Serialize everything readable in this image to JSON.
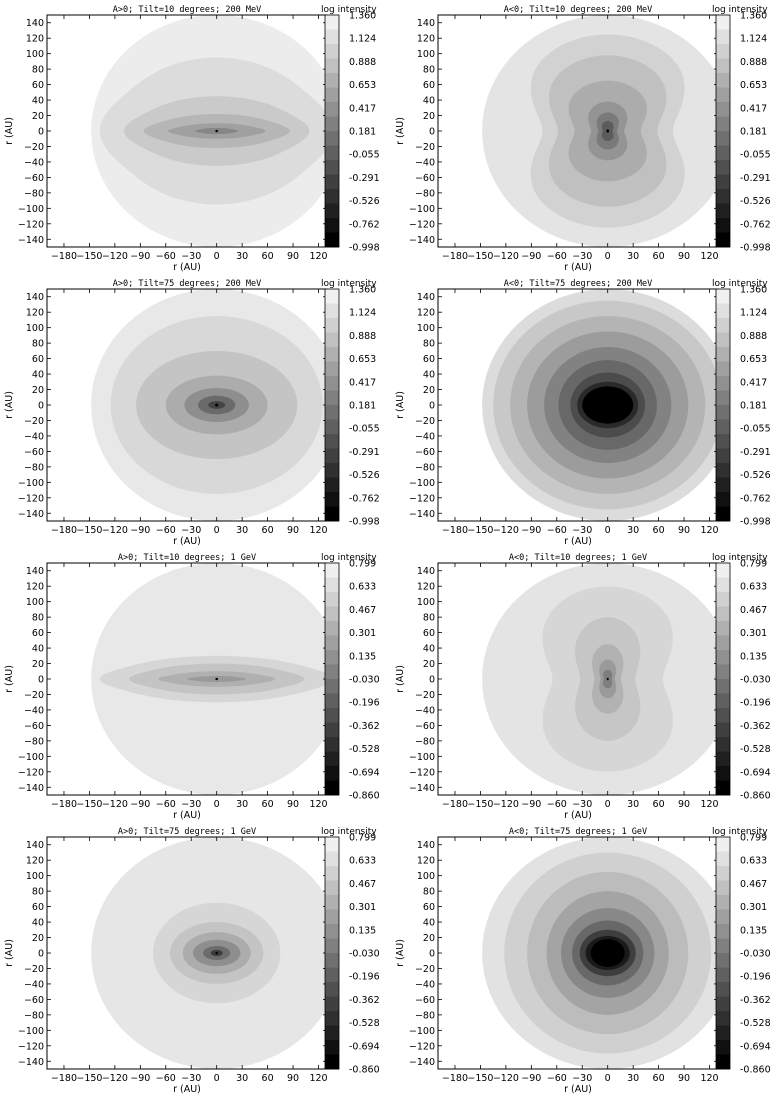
{
  "chart_data": [
    {
      "type": "heatmap",
      "title": "A>0; Tilt=10 degrees; 200 MeV",
      "xlabel": "r (AU)",
      "ylabel": "r (AU)",
      "xlim": [
        -200,
        130
      ],
      "ylim": [
        -150,
        150
      ],
      "x_ticks": [
        "-180",
        "-150",
        "-120",
        "-90",
        "-60",
        "-30",
        "0",
        "30",
        "60",
        "90",
        "120"
      ],
      "y_ticks": [
        "140",
        "120",
        "100",
        "80",
        "60",
        "40",
        "20",
        "0",
        "-20",
        "-40",
        "-60",
        "-80",
        "-100",
        "-120",
        "-140"
      ],
      "colorbar_title": "log intensity",
      "colorbar_ticks": [
        "1.360",
        "1.124",
        "0.888",
        "0.653",
        "0.417",
        "0.181",
        "-0.055",
        "-0.291",
        "-0.526",
        "-0.762",
        "-0.998"
      ],
      "pattern": "plane",
      "levels": [
        {
          "level": 1.36,
          "rx": 148,
          "ry": 150,
          "color": "#ececec"
        },
        {
          "level": 1.124,
          "rx": 120,
          "ry": 95,
          "color": "#dcdcdc"
        },
        {
          "level": 0.888,
          "rx": 95,
          "ry": 45,
          "color": "#cacaca"
        },
        {
          "level": 0.653,
          "rx": 75,
          "ry": 22,
          "color": "#b6b6b6"
        },
        {
          "level": 0.417,
          "rx": 50,
          "ry": 10,
          "color": "#a0a0a0"
        },
        {
          "level": 0.181,
          "rx": 22,
          "ry": 4,
          "color": "#868686"
        },
        {
          "level": -0.998,
          "rx": 1.5,
          "ry": 1.5,
          "color": "#000000"
        }
      ]
    },
    {
      "type": "heatmap",
      "title": "A<0; Tilt=10 degrees; 200 MeV",
      "xlabel": "r (AU)",
      "ylabel": "r (AU)",
      "xlim": [
        -200,
        130
      ],
      "ylim": [
        -150,
        150
      ],
      "x_ticks": [
        "-180",
        "-150",
        "-120",
        "-90",
        "-60",
        "-30",
        "0",
        "30",
        "60",
        "90",
        "120"
      ],
      "y_ticks": [
        "140",
        "120",
        "100",
        "80",
        "60",
        "40",
        "20",
        "0",
        "-20",
        "-40",
        "-60",
        "-80",
        "-100",
        "-120",
        "-140"
      ],
      "colorbar_title": "log intensity",
      "colorbar_ticks": [
        "1.360",
        "1.124",
        "0.888",
        "0.653",
        "0.417",
        "0.181",
        "-0.055",
        "-0.291",
        "-0.526",
        "-0.762",
        "-0.998"
      ],
      "pattern": "pinch",
      "levels": [
        {
          "level": 1.36,
          "rx": 148,
          "ry": 150,
          "color": "#e4e4e4"
        },
        {
          "level": 1.124,
          "rx": 118,
          "ry": 125,
          "color": "#d2d2d2"
        },
        {
          "level": 0.888,
          "rx": 90,
          "ry": 98,
          "color": "#c0c0c0"
        },
        {
          "level": 0.653,
          "rx": 60,
          "ry": 65,
          "color": "#acacac"
        },
        {
          "level": 0.417,
          "rx": 30,
          "ry": 38,
          "color": "#949494"
        },
        {
          "level": 0.181,
          "rx": 17,
          "ry": 24,
          "color": "#7a7a7a"
        },
        {
          "level": -0.055,
          "rx": 9,
          "ry": 13,
          "color": "#5c5c5c"
        },
        {
          "level": -0.998,
          "rx": 2,
          "ry": 2,
          "color": "#000000"
        }
      ]
    },
    {
      "type": "heatmap",
      "title": "A>0; Tilt=75 degrees; 200 MeV",
      "xlabel": "r (AU)",
      "ylabel": "r (AU)",
      "xlim": [
        -200,
        130
      ],
      "ylim": [
        -150,
        150
      ],
      "x_ticks": [
        "-180",
        "-150",
        "-120",
        "-90",
        "-60",
        "-30",
        "0",
        "30",
        "60",
        "90",
        "120"
      ],
      "y_ticks": [
        "140",
        "120",
        "100",
        "80",
        "60",
        "40",
        "20",
        "0",
        "-20",
        "-40",
        "-60",
        "-80",
        "-100",
        "-120",
        "-140"
      ],
      "colorbar_title": "log intensity",
      "colorbar_ticks": [
        "1.360",
        "1.124",
        "0.888",
        "0.653",
        "0.417",
        "0.181",
        "-0.055",
        "-0.291",
        "-0.526",
        "-0.762",
        "-0.998"
      ],
      "pattern": "oval",
      "levels": [
        {
          "level": 1.36,
          "rx": 148,
          "ry": 150,
          "color": "#e8e8e8"
        },
        {
          "level": 1.124,
          "rx": 125,
          "ry": 115,
          "color": "#d8d8d8"
        },
        {
          "level": 0.888,
          "rx": 95,
          "ry": 70,
          "color": "#c4c4c4"
        },
        {
          "level": 0.653,
          "rx": 60,
          "ry": 38,
          "color": "#acacac"
        },
        {
          "level": 0.417,
          "rx": 38,
          "ry": 22,
          "color": "#8e8e8e"
        },
        {
          "level": 0.181,
          "rx": 22,
          "ry": 12,
          "color": "#6a6a6a"
        },
        {
          "level": -0.055,
          "rx": 10,
          "ry": 5,
          "color": "#444444"
        },
        {
          "level": -0.998,
          "rx": 2,
          "ry": 2,
          "color": "#000000"
        }
      ]
    },
    {
      "type": "heatmap",
      "title": "A<0; Tilt=75 degrees; 200 MeV",
      "xlabel": "r (AU)",
      "ylabel": "r (AU)",
      "xlim": [
        -200,
        130
      ],
      "ylim": [
        -150,
        150
      ],
      "x_ticks": [
        "-180",
        "-150",
        "-120",
        "-90",
        "-60",
        "-30",
        "0",
        "30",
        "60",
        "90",
        "120"
      ],
      "y_ticks": [
        "140",
        "120",
        "100",
        "80",
        "60",
        "40",
        "20",
        "0",
        "-20",
        "-40",
        "-60",
        "-80",
        "-100",
        "-120",
        "-140"
      ],
      "colorbar_title": "log intensity",
      "colorbar_ticks": [
        "1.360",
        "1.124",
        "0.888",
        "0.653",
        "0.417",
        "0.181",
        "-0.055",
        "-0.291",
        "-0.526",
        "-0.762",
        "-0.998"
      ],
      "pattern": "oval",
      "levels": [
        {
          "level": 1.36,
          "rx": 148,
          "ry": 150,
          "color": "#dcdcdc"
        },
        {
          "level": 1.124,
          "rx": 135,
          "ry": 135,
          "color": "#c8c8c8"
        },
        {
          "level": 0.888,
          "rx": 115,
          "ry": 115,
          "color": "#b4b4b4"
        },
        {
          "level": 0.653,
          "rx": 95,
          "ry": 95,
          "color": "#9c9c9c"
        },
        {
          "level": 0.417,
          "rx": 75,
          "ry": 75,
          "color": "#828282"
        },
        {
          "level": 0.181,
          "rx": 58,
          "ry": 58,
          "color": "#686868"
        },
        {
          "level": -0.055,
          "rx": 44,
          "ry": 42,
          "color": "#4c4c4c"
        },
        {
          "level": -0.291,
          "rx": 36,
          "ry": 30,
          "color": "#2a2a2a"
        },
        {
          "level": -0.998,
          "rx": 30,
          "ry": 24,
          "color": "#000000"
        }
      ]
    },
    {
      "type": "heatmap",
      "title": "A>0; Tilt=10 degrees; 1 GeV",
      "xlabel": "r (AU)",
      "ylabel": "r (AU)",
      "xlim": [
        -200,
        130
      ],
      "ylim": [
        -150,
        150
      ],
      "x_ticks": [
        "-180",
        "-150",
        "-120",
        "-90",
        "-60",
        "-30",
        "0",
        "30",
        "60",
        "90",
        "120"
      ],
      "y_ticks": [
        "140",
        "120",
        "100",
        "80",
        "60",
        "40",
        "20",
        "0",
        "-20",
        "-40",
        "-60",
        "-80",
        "-100",
        "-120",
        "-140"
      ],
      "colorbar_title": "log intensity",
      "colorbar_ticks": [
        "0.799",
        "0.633",
        "0.467",
        "0.301",
        "0.135",
        "-0.030",
        "-0.196",
        "-0.362",
        "-0.528",
        "-0.694",
        "-0.860"
      ],
      "pattern": "plane",
      "levels": [
        {
          "level": 0.799,
          "rx": 148,
          "ry": 150,
          "color": "#e8e8e8"
        },
        {
          "level": 0.633,
          "rx": 120,
          "ry": 30,
          "color": "#d6d6d6"
        },
        {
          "level": 0.467,
          "rx": 90,
          "ry": 20,
          "color": "#c4c4c4"
        },
        {
          "level": 0.301,
          "rx": 60,
          "ry": 10,
          "color": "#b0b0b0"
        },
        {
          "level": 0.135,
          "rx": 30,
          "ry": 4,
          "color": "#9a9a9a"
        },
        {
          "level": -0.86,
          "rx": 1.5,
          "ry": 1.5,
          "color": "#000000"
        }
      ]
    },
    {
      "type": "heatmap",
      "title": "A<0; Tilt=10 degrees; 1 GeV",
      "xlabel": "r (AU)",
      "ylabel": "r (AU)",
      "xlim": [
        -200,
        130
      ],
      "ylim": [
        -150,
        150
      ],
      "x_ticks": [
        "-180",
        "-150",
        "-120",
        "-90",
        "-60",
        "-30",
        "0",
        "30",
        "60",
        "90",
        "120"
      ],
      "y_ticks": [
        "140",
        "120",
        "100",
        "80",
        "60",
        "40",
        "20",
        "0",
        "-20",
        "-40",
        "-60",
        "-80",
        "-100",
        "-120",
        "-140"
      ],
      "colorbar_title": "log intensity",
      "colorbar_ticks": [
        "0.799",
        "0.633",
        "0.467",
        "0.301",
        "0.135",
        "-0.030",
        "-0.196",
        "-0.362",
        "-0.528",
        "-0.694",
        "-0.860"
      ],
      "pattern": "pinch",
      "levels": [
        {
          "level": 0.799,
          "rx": 148,
          "ry": 150,
          "color": "#e4e4e4"
        },
        {
          "level": 0.633,
          "rx": 100,
          "ry": 120,
          "color": "#d6d6d6"
        },
        {
          "level": 0.467,
          "rx": 50,
          "ry": 80,
          "color": "#c6c6c6"
        },
        {
          "level": 0.301,
          "rx": 24,
          "ry": 45,
          "color": "#b2b2b2"
        },
        {
          "level": 0.135,
          "rx": 13,
          "ry": 25,
          "color": "#9a9a9a"
        },
        {
          "level": -0.03,
          "rx": 7,
          "ry": 12,
          "color": "#7e7e7e"
        },
        {
          "level": -0.86,
          "rx": 1.5,
          "ry": 1.5,
          "color": "#000000"
        }
      ]
    },
    {
      "type": "heatmap",
      "title": "A>0; Tilt=75 degrees; 1 GeV",
      "xlabel": "r (AU)",
      "ylabel": "r (AU)",
      "xlim": [
        -200,
        130
      ],
      "ylim": [
        -150,
        150
      ],
      "x_ticks": [
        "-180",
        "-150",
        "-120",
        "-90",
        "-60",
        "-30",
        "0",
        "30",
        "60",
        "90",
        "120"
      ],
      "y_ticks": [
        "140",
        "120",
        "100",
        "80",
        "60",
        "40",
        "20",
        "0",
        "-20",
        "-40",
        "-60",
        "-80",
        "-100",
        "-120",
        "-140"
      ],
      "colorbar_title": "log intensity",
      "colorbar_ticks": [
        "0.799",
        "0.633",
        "0.467",
        "0.301",
        "0.135",
        "-0.030",
        "-0.196",
        "-0.362",
        "-0.528",
        "-0.694",
        "-0.860"
      ],
      "pattern": "oval",
      "levels": [
        {
          "level": 0.799,
          "rx": 148,
          "ry": 150,
          "color": "#e6e6e6"
        },
        {
          "level": 0.633,
          "rx": 75,
          "ry": 65,
          "color": "#d6d6d6"
        },
        {
          "level": 0.467,
          "rx": 55,
          "ry": 40,
          "color": "#c4c4c4"
        },
        {
          "level": 0.301,
          "rx": 40,
          "ry": 27,
          "color": "#acacac"
        },
        {
          "level": 0.135,
          "rx": 28,
          "ry": 17,
          "color": "#8e8e8e"
        },
        {
          "level": -0.03,
          "rx": 16,
          "ry": 9,
          "color": "#6c6c6c"
        },
        {
          "level": -0.196,
          "rx": 7,
          "ry": 4,
          "color": "#3c3c3c"
        },
        {
          "level": -0.86,
          "rx": 1.5,
          "ry": 1.5,
          "color": "#000000"
        }
      ]
    },
    {
      "type": "heatmap",
      "title": "A<0; Tilt=75 degrees; 1 GeV",
      "xlabel": "r (AU)",
      "ylabel": "r (AU)",
      "xlim": [
        -200,
        130
      ],
      "ylim": [
        -150,
        150
      ],
      "x_ticks": [
        "-180",
        "-150",
        "-120",
        "-90",
        "-60",
        "-30",
        "0",
        "30",
        "60",
        "90",
        "120"
      ],
      "y_ticks": [
        "140",
        "120",
        "100",
        "80",
        "60",
        "40",
        "20",
        "0",
        "-20",
        "-40",
        "-60",
        "-80",
        "-100",
        "-120",
        "-140"
      ],
      "colorbar_title": "log intensity",
      "colorbar_ticks": [
        "0.799",
        "0.633",
        "0.467",
        "0.301",
        "0.135",
        "-0.030",
        "-0.196",
        "-0.362",
        "-0.528",
        "-0.694",
        "-0.860"
      ],
      "pattern": "oval",
      "levels": [
        {
          "level": 0.799,
          "rx": 148,
          "ry": 150,
          "color": "#e2e2e2"
        },
        {
          "level": 0.633,
          "rx": 122,
          "ry": 130,
          "color": "#d0d0d0"
        },
        {
          "level": 0.467,
          "rx": 95,
          "ry": 105,
          "color": "#bcbcbc"
        },
        {
          "level": 0.301,
          "rx": 72,
          "ry": 80,
          "color": "#a4a4a4"
        },
        {
          "level": 0.135,
          "rx": 55,
          "ry": 58,
          "color": "#888888"
        },
        {
          "level": -0.03,
          "rx": 42,
          "ry": 42,
          "color": "#686868"
        },
        {
          "level": -0.196,
          "rx": 33,
          "ry": 30,
          "color": "#3e3e3e"
        },
        {
          "level": -0.362,
          "rx": 26,
          "ry": 22,
          "color": "#1a1a1a"
        },
        {
          "level": -0.86,
          "rx": 20,
          "ry": 18,
          "color": "#000000"
        }
      ]
    }
  ]
}
